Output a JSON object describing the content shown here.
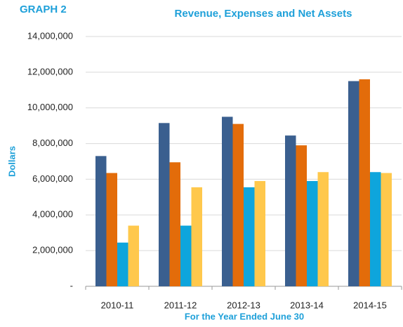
{
  "chart_data": {
    "type": "bar",
    "label": "GRAPH 2",
    "title": "Revenue, Expenses and Net Assets",
    "y_label": "Dollars",
    "x_label": "For the Year Ended June 30",
    "categories": [
      "2010-11",
      "2011-12",
      "2012-13",
      "2013-14",
      "2014-15"
    ],
    "series": [
      {
        "color": "#3a5f8f",
        "values": [
          7300000,
          9150000,
          9500000,
          8450000,
          11500000
        ]
      },
      {
        "color": "#e36c0a",
        "values": [
          6350000,
          6950000,
          9100000,
          7900000,
          11600000
        ]
      },
      {
        "color": "#0ea5dc",
        "values": [
          2450000,
          3400000,
          5550000,
          5900000,
          6400000
        ]
      },
      {
        "color": "#ffc84c",
        "values": [
          3400000,
          5550000,
          5900000,
          6400000,
          6350000
        ]
      }
    ],
    "ylim": [
      0,
      14000000
    ],
    "yticks": [
      {
        "value": 0,
        "label": "-"
      },
      {
        "value": 2000000,
        "label": "2,000,000"
      },
      {
        "value": 4000000,
        "label": "4,000,000"
      },
      {
        "value": 6000000,
        "label": "6,000,000"
      },
      {
        "value": 8000000,
        "label": "8,000,000"
      },
      {
        "value": 10000000,
        "label": "10,000,000"
      },
      {
        "value": 12000000,
        "label": "12,000,000"
      },
      {
        "value": 14000000,
        "label": "14,000,000"
      }
    ],
    "grid": true
  }
}
